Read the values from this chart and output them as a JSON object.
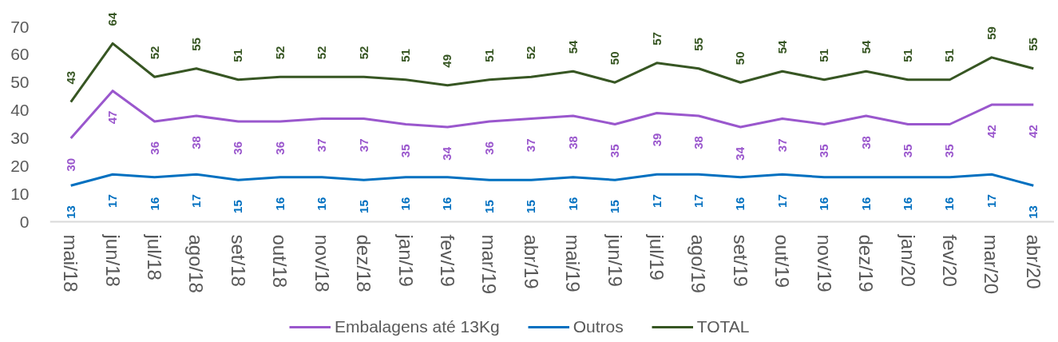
{
  "chart_data": {
    "type": "line",
    "categories": [
      "mai/18",
      "jun/18",
      "jul/18",
      "ago/18",
      "set/18",
      "out/18",
      "nov/18",
      "dez/18",
      "jan/19",
      "fev/19",
      "mar/19",
      "abr/19",
      "mai/19",
      "jun/19",
      "jul/19",
      "ago/19",
      "set/19",
      "out/19",
      "nov/19",
      "dez/19",
      "jan/20",
      "fev/20",
      "mar/20",
      "abr/20"
    ],
    "ylim": [
      0,
      70
    ],
    "yticks": [
      0,
      10,
      20,
      30,
      40,
      50,
      60,
      70
    ],
    "legend": "bottom",
    "data_labels": true,
    "series": [
      {
        "name": "Embalagens até 13Kg",
        "color": "#9a57cd",
        "values": [
          30,
          47,
          36,
          38,
          36,
          36,
          37,
          37,
          35,
          34,
          36,
          37,
          38,
          35,
          39,
          38,
          34,
          37,
          35,
          38,
          35,
          35,
          42,
          42
        ]
      },
      {
        "name": "Outros",
        "color": "#0070c0",
        "values": [
          13,
          17,
          16,
          17,
          15,
          16,
          16,
          15,
          16,
          16,
          15,
          15,
          16,
          15,
          17,
          17,
          16,
          17,
          16,
          16,
          16,
          16,
          17,
          13
        ]
      },
      {
        "name": "TOTAL",
        "color": "#375623",
        "values": [
          43,
          64,
          52,
          55,
          51,
          52,
          52,
          52,
          51,
          49,
          51,
          52,
          54,
          50,
          57,
          55,
          50,
          54,
          51,
          54,
          51,
          51,
          59,
          55
        ]
      }
    ]
  }
}
